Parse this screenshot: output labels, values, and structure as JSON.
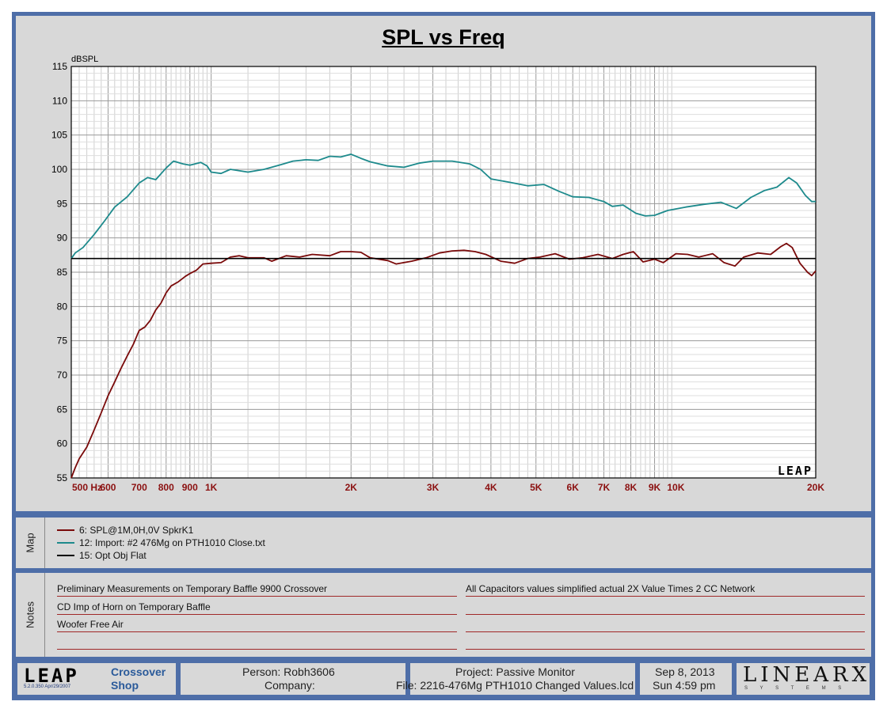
{
  "chart_data": {
    "type": "line",
    "title": "SPL vs Freq",
    "ylabel": "dBSPL",
    "x_scale": "log",
    "xlim": [
      500,
      20000
    ],
    "ylim": [
      55,
      115
    ],
    "grid": true,
    "y_ticks": [
      55,
      60,
      65,
      70,
      75,
      80,
      85,
      90,
      95,
      100,
      105,
      110,
      115
    ],
    "x_ticks": [
      {
        "v": 500,
        "label": "500 Hz"
      },
      {
        "v": 600,
        "label": "600"
      },
      {
        "v": 700,
        "label": "700"
      },
      {
        "v": 800,
        "label": "800"
      },
      {
        "v": 900,
        "label": "900"
      },
      {
        "v": 1000,
        "label": "1K"
      },
      {
        "v": 2000,
        "label": "2K"
      },
      {
        "v": 3000,
        "label": "3K"
      },
      {
        "v": 4000,
        "label": "4K"
      },
      {
        "v": 5000,
        "label": "5K"
      },
      {
        "v": 6000,
        "label": "6K"
      },
      {
        "v": 7000,
        "label": "7K"
      },
      {
        "v": 8000,
        "label": "8K"
      },
      {
        "v": 9000,
        "label": "9K"
      },
      {
        "v": 10000,
        "label": "10K"
      },
      {
        "v": 20000,
        "label": "20K"
      }
    ],
    "watermark": "LEAP",
    "series": [
      {
        "name": "6: SPL@1M,0H,0V SpkrK1",
        "color": "#7a0a0a",
        "points": [
          [
            500,
            55
          ],
          [
            510,
            56.5
          ],
          [
            520,
            57.8
          ],
          [
            540,
            59.5
          ],
          [
            560,
            62
          ],
          [
            580,
            64.5
          ],
          [
            600,
            67
          ],
          [
            620,
            69
          ],
          [
            640,
            71
          ],
          [
            660,
            72.8
          ],
          [
            680,
            74.5
          ],
          [
            700,
            76.5
          ],
          [
            720,
            77
          ],
          [
            740,
            78
          ],
          [
            760,
            79.5
          ],
          [
            780,
            80.5
          ],
          [
            800,
            82
          ],
          [
            820,
            83
          ],
          [
            850,
            83.6
          ],
          [
            880,
            84.4
          ],
          [
            900,
            84.8
          ],
          [
            930,
            85.3
          ],
          [
            960,
            86.2
          ],
          [
            1000,
            86.3
          ],
          [
            1050,
            86.4
          ],
          [
            1100,
            87.2
          ],
          [
            1150,
            87.4
          ],
          [
            1200,
            87.1
          ],
          [
            1300,
            87.1
          ],
          [
            1350,
            86.6
          ],
          [
            1450,
            87.4
          ],
          [
            1550,
            87.2
          ],
          [
            1650,
            87.6
          ],
          [
            1800,
            87.4
          ],
          [
            1900,
            88
          ],
          [
            2000,
            88
          ],
          [
            2100,
            87.9
          ],
          [
            2200,
            87.1
          ],
          [
            2400,
            86.7
          ],
          [
            2500,
            86.2
          ],
          [
            2700,
            86.6
          ],
          [
            2900,
            87.1
          ],
          [
            3100,
            87.8
          ],
          [
            3300,
            88.1
          ],
          [
            3500,
            88.2
          ],
          [
            3700,
            88
          ],
          [
            3900,
            87.6
          ],
          [
            4200,
            86.6
          ],
          [
            4500,
            86.3
          ],
          [
            4800,
            87
          ],
          [
            5100,
            87.2
          ],
          [
            5500,
            87.7
          ],
          [
            5900,
            86.9
          ],
          [
            6300,
            87.1
          ],
          [
            6800,
            87.6
          ],
          [
            7300,
            87
          ],
          [
            7700,
            87.6
          ],
          [
            8100,
            88
          ],
          [
            8500,
            86.5
          ],
          [
            9000,
            86.9
          ],
          [
            9400,
            86.4
          ],
          [
            10000,
            87.7
          ],
          [
            10600,
            87.6
          ],
          [
            11200,
            87.2
          ],
          [
            12000,
            87.7
          ],
          [
            12700,
            86.4
          ],
          [
            13400,
            85.9
          ],
          [
            14000,
            87.2
          ],
          [
            15000,
            87.8
          ],
          [
            16000,
            87.6
          ],
          [
            16800,
            88.7
          ],
          [
            17300,
            89.2
          ],
          [
            17800,
            88.6
          ],
          [
            18500,
            86.3
          ],
          [
            19200,
            85
          ],
          [
            19600,
            84.5
          ],
          [
            20000,
            85.2
          ]
        ]
      },
      {
        "name": "12: Import: #2 476Mg on PTH1010 Close.txt",
        "color": "#1d8a8c",
        "points": [
          [
            500,
            87
          ],
          [
            510,
            87.8
          ],
          [
            530,
            88.6
          ],
          [
            560,
            90.5
          ],
          [
            590,
            92.5
          ],
          [
            620,
            94.5
          ],
          [
            660,
            96
          ],
          [
            700,
            98
          ],
          [
            730,
            98.8
          ],
          [
            760,
            98.5
          ],
          [
            800,
            100.2
          ],
          [
            830,
            101.2
          ],
          [
            870,
            100.8
          ],
          [
            900,
            100.6
          ],
          [
            950,
            101
          ],
          [
            980,
            100.5
          ],
          [
            1000,
            99.6
          ],
          [
            1050,
            99.4
          ],
          [
            1100,
            100
          ],
          [
            1200,
            99.6
          ],
          [
            1300,
            100
          ],
          [
            1400,
            100.6
          ],
          [
            1500,
            101.2
          ],
          [
            1600,
            101.4
          ],
          [
            1700,
            101.3
          ],
          [
            1800,
            101.9
          ],
          [
            1900,
            101.8
          ],
          [
            2000,
            102.2
          ],
          [
            2100,
            101.6
          ],
          [
            2200,
            101.1
          ],
          [
            2400,
            100.5
          ],
          [
            2600,
            100.3
          ],
          [
            2800,
            100.9
          ],
          [
            3000,
            101.2
          ],
          [
            3300,
            101.2
          ],
          [
            3600,
            100.8
          ],
          [
            3800,
            100
          ],
          [
            4000,
            98.6
          ],
          [
            4400,
            98.1
          ],
          [
            4800,
            97.6
          ],
          [
            5200,
            97.8
          ],
          [
            5600,
            96.8
          ],
          [
            6000,
            96
          ],
          [
            6500,
            95.9
          ],
          [
            7000,
            95.3
          ],
          [
            7300,
            94.6
          ],
          [
            7700,
            94.8
          ],
          [
            8200,
            93.6
          ],
          [
            8600,
            93.2
          ],
          [
            9000,
            93.3
          ],
          [
            9600,
            94
          ],
          [
            10500,
            94.5
          ],
          [
            11500,
            94.9
          ],
          [
            12500,
            95.2
          ],
          [
            13500,
            94.3
          ],
          [
            14500,
            95.9
          ],
          [
            15500,
            96.9
          ],
          [
            16500,
            97.4
          ],
          [
            17500,
            98.8
          ],
          [
            18200,
            98
          ],
          [
            19000,
            96.2
          ],
          [
            19600,
            95.3
          ],
          [
            20000,
            95.3
          ]
        ]
      },
      {
        "name": "15: Opt Obj Flat",
        "color": "#000000",
        "points": [
          [
            500,
            87
          ],
          [
            20000,
            87
          ]
        ]
      }
    ]
  },
  "map": {
    "label": "Map",
    "items": [
      {
        "name": "6: SPL@1M,0H,0V SpkrK1",
        "color": "#7a0a0a"
      },
      {
        "name": "12: Import: #2 476Mg on PTH1010 Close.txt",
        "color": "#1d8a8c"
      },
      {
        "name": "15: Opt Obj Flat",
        "color": "#000000"
      }
    ]
  },
  "notes": {
    "label": "Notes",
    "left": [
      "Preliminary Measurements on Temporary Baffle  9900 Crossover",
      "CD Imp of Horn on Temporary Baffle",
      "Woofer Free Air",
      ""
    ],
    "right": [
      "All Capacitors values simplified actual 2X Value Times 2 CC Network",
      "",
      "",
      ""
    ]
  },
  "footer": {
    "logo": "LEAP",
    "version": "5.2.0.350   Apr/29/2007",
    "module_line1": "Crossover",
    "module_line2": "Shop",
    "person": "Person: Robh3606",
    "company": "Company:",
    "project": "Project: Passive Monitor",
    "file": "File: 2216-476Mg PTH1010 Changed Values.lcd",
    "date": "Sep  8, 2013",
    "time": "Sun  4:59 pm",
    "brand": "LINEARX",
    "brand_sub": "S Y S T E M S"
  }
}
